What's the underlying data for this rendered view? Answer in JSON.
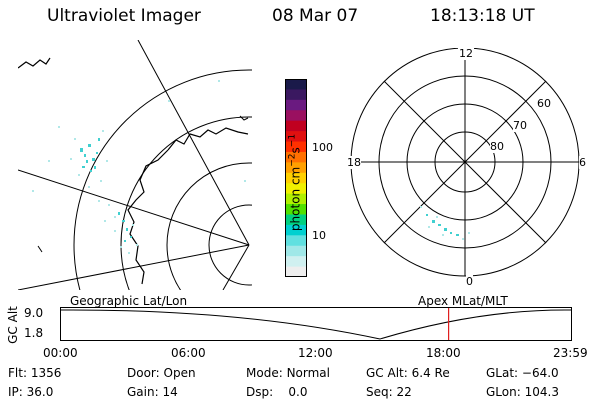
{
  "header": {
    "instrument": "Ultraviolet Imager",
    "date": "08 Mar 07",
    "time": "18:13:18 UT"
  },
  "geo_panel": {
    "label": "Geographic Lat/Lon"
  },
  "colorbar": {
    "unit_base": "photon cm",
    "unit_exp1": "−2",
    "unit_mid": "s",
    "unit_exp2": "−1",
    "ticks": [
      "100",
      "10"
    ],
    "colors": [
      "#1a1a4a",
      "#3a1860",
      "#6a1a80",
      "#9a1060",
      "#c00020",
      "#e01010",
      "#ff3000",
      "#ff7000",
      "#ffa000",
      "#ffd000",
      "#f0f000",
      "#b0f000",
      "#50e000",
      "#00d080",
      "#00d0d0",
      "#60e0e0",
      "#a0e8e8",
      "#d0f0f0",
      "#eeeeee"
    ]
  },
  "polar_panel": {
    "label": "Apex MLat/MLT",
    "mlt_labels": {
      "top": "12",
      "left": "18",
      "right": "6",
      "bottom": "0"
    },
    "lat_labels": [
      "60",
      "70",
      "80"
    ]
  },
  "altitude_plot": {
    "ylabel": "GC Alt",
    "yticks": [
      "9.0",
      "1.8"
    ],
    "xticks": [
      "00:00",
      "06:00",
      "12:00",
      "18:00",
      "23:59"
    ],
    "current_time_fraction": 0.759,
    "marker_color": "#e02020"
  },
  "status": {
    "flt_label": "Flt:",
    "flt_value": "1356",
    "ip_label": "IP:",
    "ip_value": "36.0",
    "door_label": "Door:",
    "door_value": "Open",
    "gain_label": "Gain:",
    "gain_value": "14",
    "mode_label": "Mode:",
    "mode_value": "Normal",
    "dsp_label": "Dsp:",
    "dsp_value": "0.0",
    "gcalt_label": "GC Alt:",
    "gcalt_value": "6.4 Re",
    "seq_label": "Seq:",
    "seq_value": "22",
    "glat_label": "GLat:",
    "glat_value": "−64.0",
    "glon_label": "GLon:",
    "glon_value": "104.3"
  }
}
